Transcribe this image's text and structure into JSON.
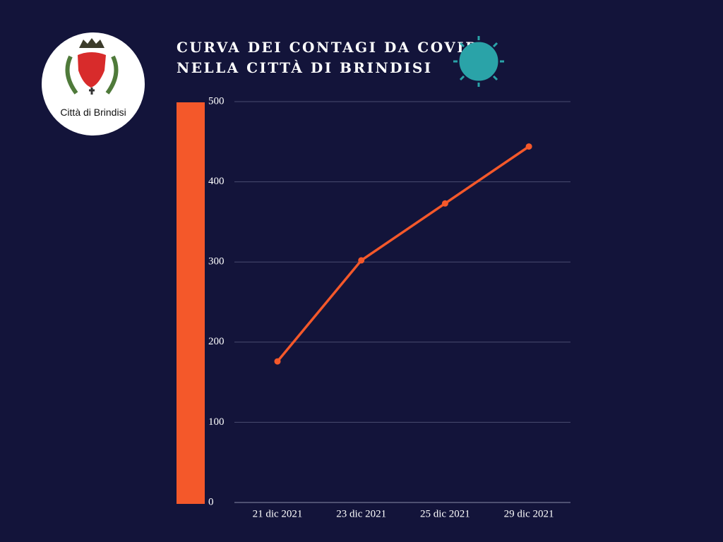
{
  "logo": {
    "text": "Città di Brindisi"
  },
  "chart_data": {
    "type": "line",
    "title": [
      "CURVA DEI CONTAGI DA COVID",
      "NELLA CITTÀ DI BRINDISI"
    ],
    "categories": [
      "21 dic 2021",
      "23 dic 2021",
      "25 dic 2021",
      "29 dic 2021"
    ],
    "values": [
      176,
      302,
      373,
      444
    ],
    "color": "#f4582a",
    "ylim": [
      0,
      500
    ],
    "yticks": [
      0,
      100,
      200,
      300,
      400,
      500
    ],
    "grid": true
  }
}
